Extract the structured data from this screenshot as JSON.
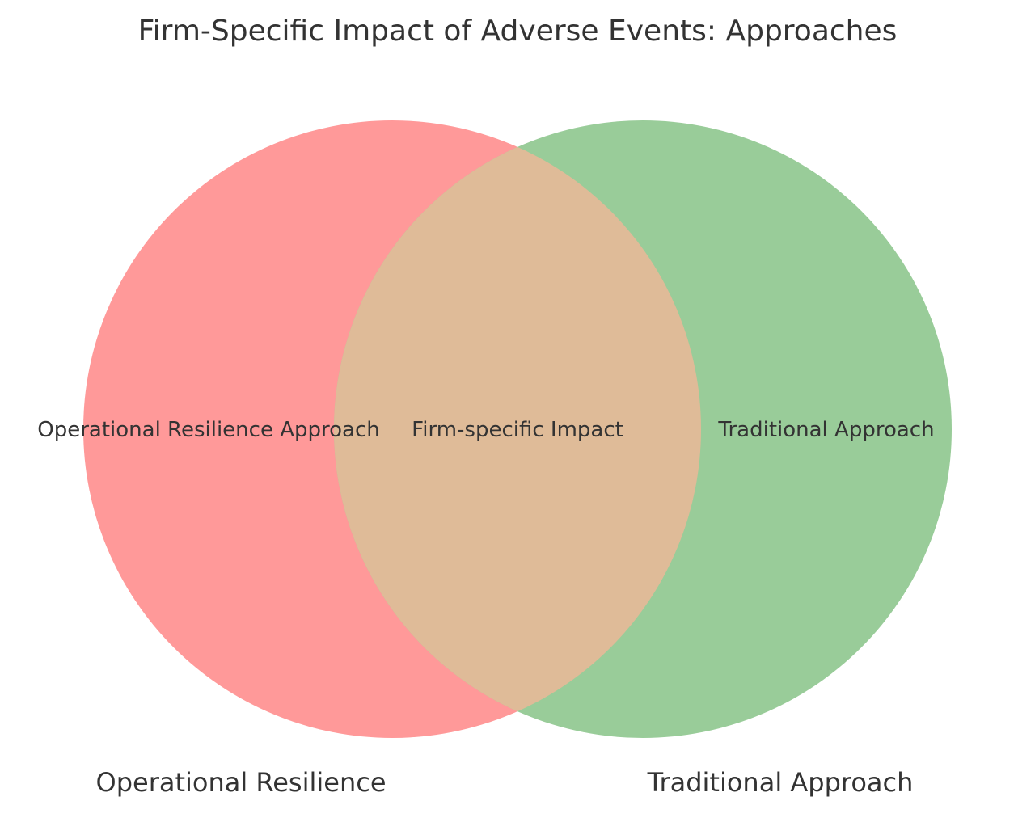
{
  "diagram": {
    "title": "Firm-Specific Impact of Adverse Events: Approaches",
    "sets": [
      {
        "set_label": "Operational Resilience",
        "region_label": "Operational Resilience Approach",
        "color": "#ff9999"
      },
      {
        "set_label": "Traditional Approach",
        "region_label": "Traditional Approach",
        "color": "#99cc99"
      }
    ],
    "intersection": {
      "region_label": "Firm-specific Impact",
      "color": "#dfbb98"
    }
  }
}
